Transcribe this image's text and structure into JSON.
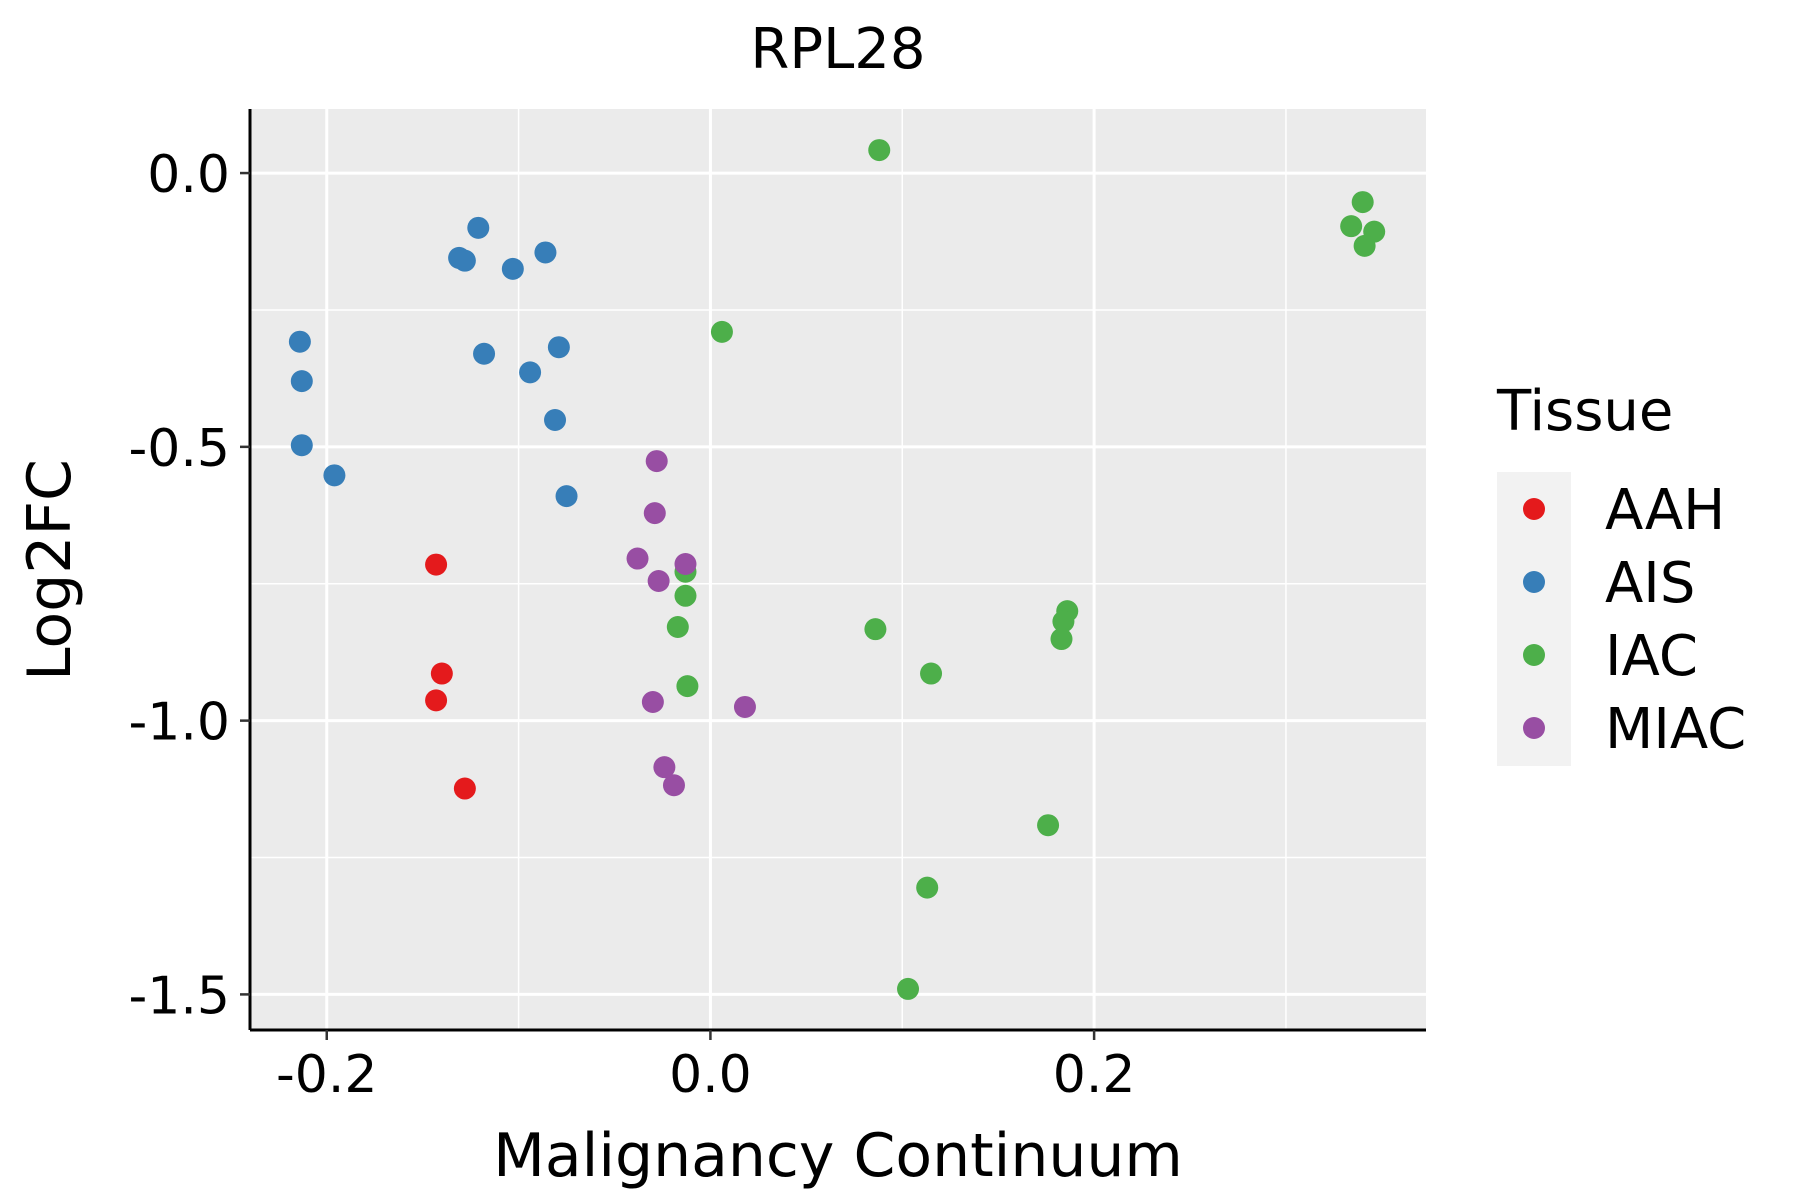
{
  "chart_data": {
    "type": "scatter",
    "title": "RPL28",
    "xlabel": "Malignancy Continuum",
    "ylabel": "Log2FC",
    "xlim": [
      -0.24,
      0.373
    ],
    "ylim": [
      -1.565,
      0.117
    ],
    "x_ticks": [
      -0.2,
      0.0,
      0.2
    ],
    "x_tick_labels": [
      "-0.2",
      "0.0",
      "0.2"
    ],
    "y_ticks": [
      0.0,
      -0.5,
      -1.0,
      -1.5
    ],
    "y_tick_labels": [
      "0.0",
      "-0.5",
      "-1.0",
      "-1.5"
    ],
    "grid": true,
    "legend_position": "right",
    "legend": {
      "title": "Tissue",
      "entries": [
        "AAH",
        "AIS",
        "IAC",
        "MIAC"
      ]
    },
    "series": [
      {
        "name": "AAH",
        "color": "#e41a1c",
        "points": [
          [
            -0.143,
            -0.715
          ],
          [
            -0.14,
            -0.914
          ],
          [
            -0.143,
            -0.963
          ],
          [
            -0.128,
            -1.124
          ]
        ]
      },
      {
        "name": "AIS",
        "color": "#377eb8",
        "points": [
          [
            -0.121,
            -0.1
          ],
          [
            -0.131,
            -0.155
          ],
          [
            -0.128,
            -0.16
          ],
          [
            -0.086,
            -0.145
          ],
          [
            -0.103,
            -0.175
          ],
          [
            -0.214,
            -0.308
          ],
          [
            -0.118,
            -0.33
          ],
          [
            -0.079,
            -0.318
          ],
          [
            -0.094,
            -0.364
          ],
          [
            -0.213,
            -0.38
          ],
          [
            -0.081,
            -0.451
          ],
          [
            -0.213,
            -0.497
          ],
          [
            -0.196,
            -0.552
          ],
          [
            -0.075,
            -0.59
          ]
        ]
      },
      {
        "name": "IAC",
        "color": "#4daf4a",
        "points": [
          [
            0.088,
            0.042
          ],
          [
            0.34,
            -0.053
          ],
          [
            0.334,
            -0.097
          ],
          [
            0.346,
            -0.107
          ],
          [
            0.341,
            -0.133
          ],
          [
            0.006,
            -0.29
          ],
          [
            -0.013,
            -0.728
          ],
          [
            -0.013,
            -0.772
          ],
          [
            -0.017,
            -0.829
          ],
          [
            -0.012,
            -0.937
          ],
          [
            0.086,
            -0.833
          ],
          [
            0.115,
            -0.914
          ],
          [
            0.186,
            -0.8
          ],
          [
            0.184,
            -0.819
          ],
          [
            0.183,
            -0.851
          ],
          [
            0.176,
            -1.191
          ],
          [
            0.113,
            -1.305
          ],
          [
            0.103,
            -1.49
          ]
        ]
      },
      {
        "name": "MIAC",
        "color": "#984ea3",
        "points": [
          [
            -0.028,
            -0.526
          ],
          [
            -0.029,
            -0.621
          ],
          [
            -0.038,
            -0.704
          ],
          [
            -0.013,
            -0.714
          ],
          [
            -0.027,
            -0.745
          ],
          [
            -0.03,
            -0.966
          ],
          [
            0.018,
            -0.975
          ],
          [
            -0.024,
            -1.085
          ],
          [
            -0.019,
            -1.118
          ]
        ]
      }
    ]
  }
}
